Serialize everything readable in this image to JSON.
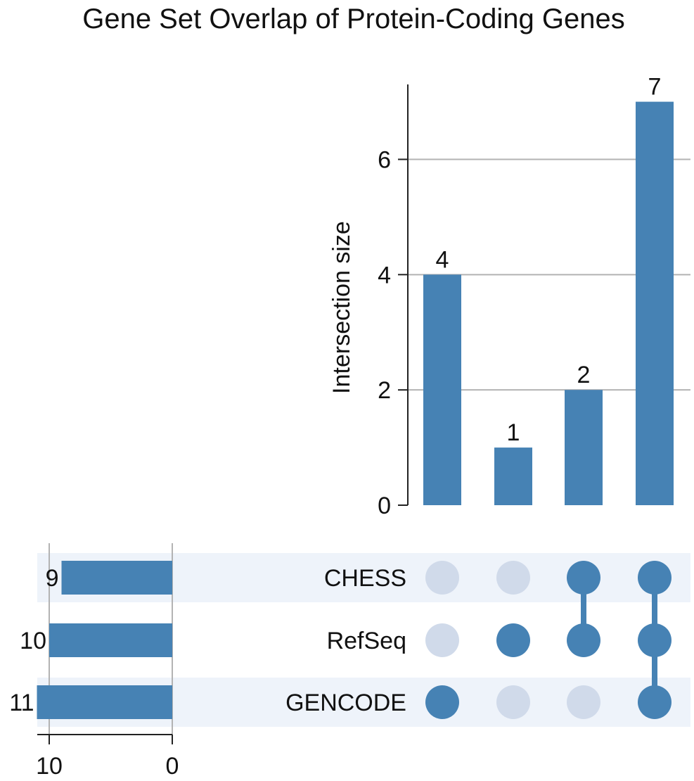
{
  "chart_data": {
    "type": "bar",
    "title": "Gene Set Overlap of Protein-Coding Genes",
    "ylabel": "Intersection size",
    "ylim": [
      0,
      7.3
    ],
    "yticks": [
      0,
      2,
      4,
      6
    ],
    "grid": true,
    "sets": [
      "CHESS",
      "RefSeq",
      "GENCODE"
    ],
    "set_sizes": [
      9,
      10,
      11
    ],
    "set_size_xlim": [
      0,
      11
    ],
    "set_size_ticks": [
      10,
      0
    ],
    "intersections": [
      {
        "members": [
          "GENCODE"
        ],
        "value": 4
      },
      {
        "members": [
          "RefSeq"
        ],
        "value": 1
      },
      {
        "members": [
          "CHESS",
          "RefSeq"
        ],
        "value": 2
      },
      {
        "members": [
          "CHESS",
          "RefSeq",
          "GENCODE"
        ],
        "value": 7
      }
    ],
    "colors": {
      "bar": "#4682b4",
      "dot_active": "#4682b4",
      "dot_inactive": "#d0daea",
      "row_shade": "#eef3fa",
      "grid": "#b3b3b3",
      "axis": "#222222"
    }
  }
}
